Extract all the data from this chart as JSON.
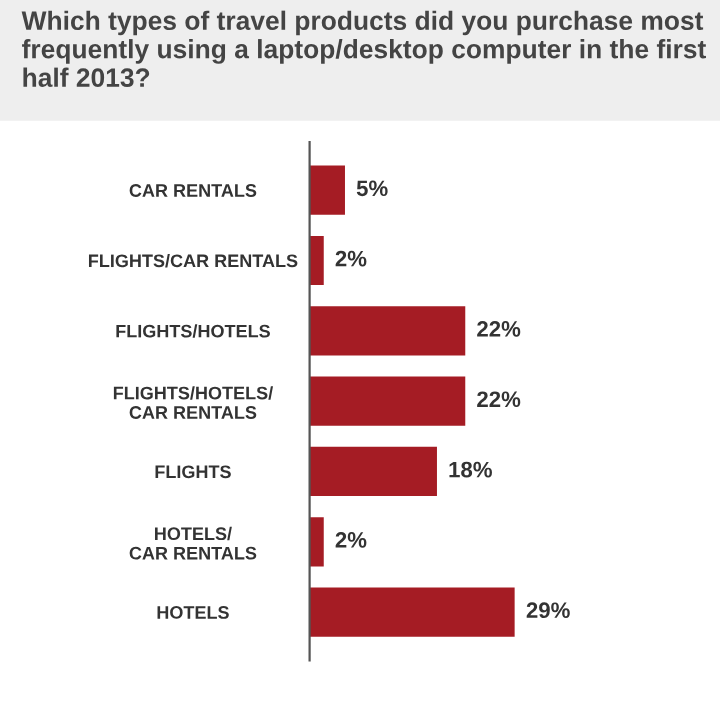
{
  "chart_data": {
    "type": "bar",
    "orientation": "horizontal",
    "title": "Which types of travel products did you purchase most frequently using a laptop/desktop computer in the first half 2013?",
    "categories": [
      "CAR RENTALS",
      "FLIGHTS/CAR RENTALS",
      "FLIGHTS/HOTELS",
      "FLIGHTS/HOTELS/\nCAR RENTALS",
      "FLIGHTS",
      "HOTELS/\nCAR RENTALS",
      "HOTELS"
    ],
    "values": [
      5,
      2,
      22,
      22,
      18,
      2,
      29
    ],
    "value_labels": [
      "5%",
      "2%",
      "22%",
      "22%",
      "18%",
      "2%",
      "29%"
    ],
    "color": "#a51c24",
    "tick_labels": "y",
    "grid": false,
    "legend": false
  }
}
